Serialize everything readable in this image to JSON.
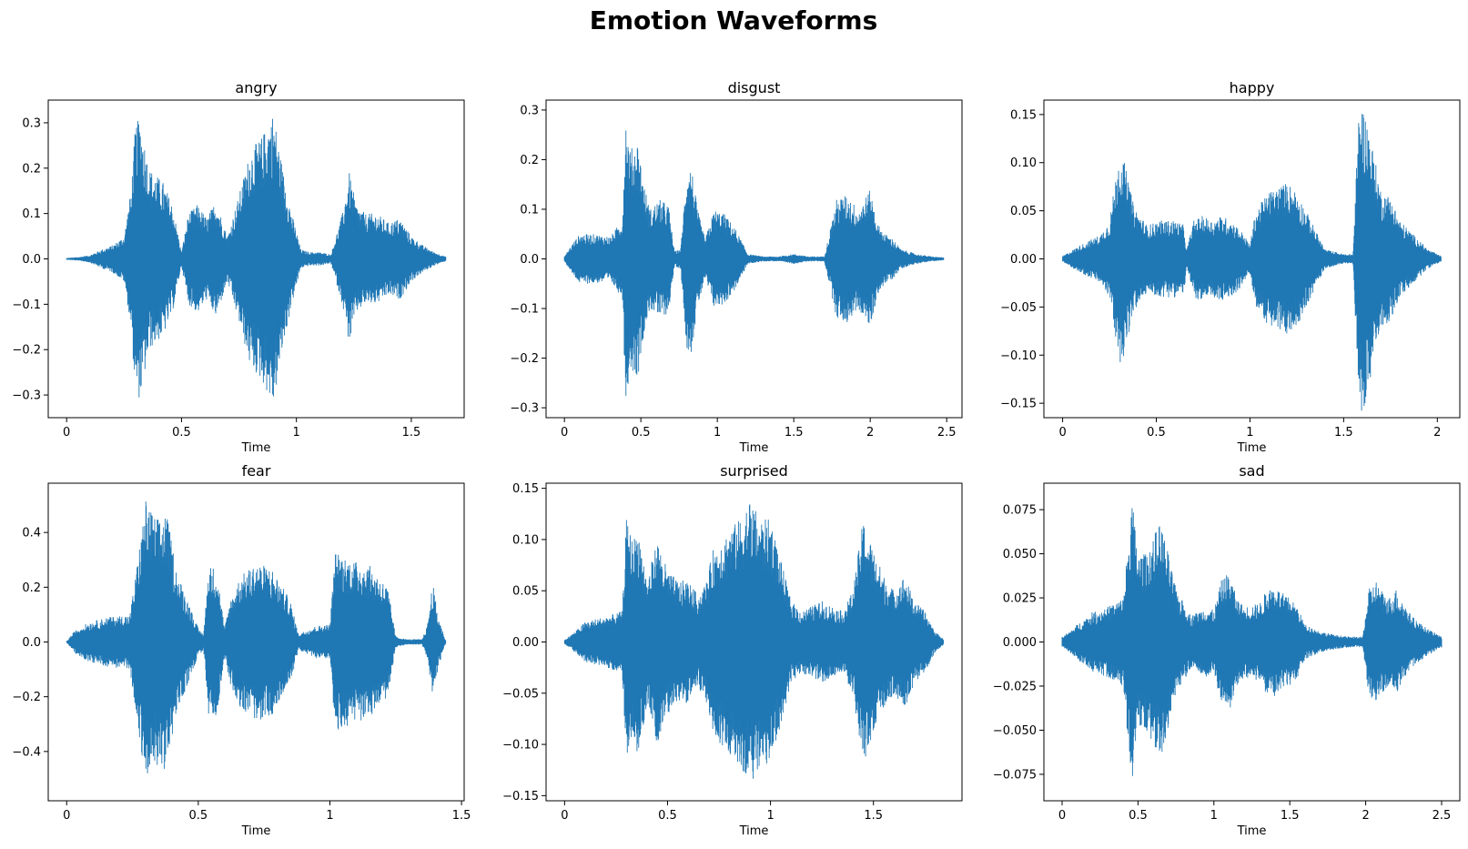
{
  "figure": {
    "title": "Emotion Waveforms"
  },
  "chart_data": [
    {
      "type": "area",
      "title": "angry",
      "xlabel": "Time",
      "ylabel": "",
      "duration": 1.65,
      "xlim": [
        -0.08,
        1.73
      ],
      "ylim": [
        -0.35,
        0.35
      ],
      "xticks": [
        0,
        0.5,
        1,
        1.5
      ],
      "xtick_labels": [
        "0",
        "0.5",
        "1",
        "1.5"
      ],
      "yticks": [
        0.3,
        0.2,
        0.1,
        0.0,
        -0.1,
        -0.2,
        -0.3
      ],
      "ytick_labels": [
        "0.3",
        "0.2",
        "0.1",
        "0.0",
        "−0.1",
        "−0.2",
        "−0.3"
      ],
      "color": "#1f77b4",
      "envelope": {
        "t": [
          0,
          0.05,
          0.1,
          0.15,
          0.2,
          0.25,
          0.28,
          0.3,
          0.32,
          0.36,
          0.42,
          0.46,
          0.5,
          0.53,
          0.57,
          0.61,
          0.65,
          0.7,
          0.75,
          0.8,
          0.85,
          0.9,
          0.94,
          0.98,
          1.02,
          1.06,
          1.1,
          1.15,
          1.2,
          1.23,
          1.26,
          1.3,
          1.35,
          1.4,
          1.45,
          1.5,
          1.55,
          1.6,
          1.65
        ],
        "amp": [
          0.002,
          0.004,
          0.008,
          0.02,
          0.03,
          0.05,
          0.15,
          0.3,
          0.31,
          0.2,
          0.17,
          0.12,
          0.015,
          0.1,
          0.12,
          0.09,
          0.13,
          0.05,
          0.14,
          0.24,
          0.27,
          0.325,
          0.2,
          0.1,
          0.02,
          0.015,
          0.015,
          0.01,
          0.1,
          0.19,
          0.12,
          0.1,
          0.1,
          0.08,
          0.09,
          0.05,
          0.03,
          0.015,
          0.005
        ]
      }
    },
    {
      "type": "area",
      "title": "disgust",
      "xlabel": "Time",
      "ylabel": "",
      "duration": 2.48,
      "xlim": [
        -0.12,
        2.6
      ],
      "ylim": [
        -0.32,
        0.32
      ],
      "xticks": [
        0,
        0.5,
        1,
        1.5,
        2,
        2.5
      ],
      "xtick_labels": [
        "0",
        "0.5",
        "1",
        "1.5",
        "2",
        "2.5"
      ],
      "yticks": [
        0.3,
        0.2,
        0.1,
        0.0,
        -0.1,
        -0.2,
        -0.3
      ],
      "ytick_labels": [
        "0.3",
        "0.2",
        "0.1",
        "0.0",
        "−0.1",
        "−0.2",
        "−0.3"
      ],
      "color": "#1f77b4",
      "envelope": {
        "t": [
          0,
          0.05,
          0.1,
          0.2,
          0.3,
          0.38,
          0.4,
          0.43,
          0.48,
          0.52,
          0.56,
          0.62,
          0.68,
          0.72,
          0.76,
          0.8,
          0.83,
          0.87,
          0.92,
          0.98,
          1.05,
          1.12,
          1.2,
          1.3,
          1.4,
          1.5,
          1.6,
          1.7,
          1.78,
          1.85,
          1.92,
          2.0,
          2.05,
          2.1,
          2.15,
          2.2,
          2.3,
          2.4,
          2.48
        ],
        "amp": [
          0.005,
          0.03,
          0.05,
          0.05,
          0.045,
          0.08,
          0.29,
          0.22,
          0.24,
          0.15,
          0.1,
          0.12,
          0.11,
          0.015,
          0.02,
          0.18,
          0.19,
          0.1,
          0.04,
          0.1,
          0.09,
          0.06,
          0.01,
          0.005,
          0.005,
          0.01,
          0.005,
          0.005,
          0.12,
          0.13,
          0.1,
          0.14,
          0.07,
          0.05,
          0.04,
          0.02,
          0.01,
          0.005,
          0.003
        ]
      }
    },
    {
      "type": "area",
      "title": "happy",
      "xlabel": "Time",
      "ylabel": "",
      "duration": 2.02,
      "xlim": [
        -0.1,
        2.12
      ],
      "ylim": [
        -0.165,
        0.165
      ],
      "xticks": [
        0,
        0.5,
        1,
        1.5,
        2
      ],
      "xtick_labels": [
        "0",
        "0.5",
        "1",
        "1.5",
        "2"
      ],
      "yticks": [
        0.15,
        0.1,
        0.05,
        0.0,
        -0.05,
        -0.1,
        -0.15
      ],
      "ytick_labels": [
        "0.15",
        "0.10",
        "0.05",
        "0.00",
        "−0.05",
        "−0.10",
        "−0.15"
      ],
      "color": "#1f77b4",
      "envelope": {
        "t": [
          0,
          0.1,
          0.2,
          0.25,
          0.28,
          0.3,
          0.33,
          0.38,
          0.45,
          0.52,
          0.6,
          0.65,
          0.66,
          0.7,
          0.75,
          0.8,
          0.85,
          0.9,
          0.95,
          1.0,
          1.03,
          1.1,
          1.15,
          1.2,
          1.25,
          1.3,
          1.35,
          1.4,
          1.5,
          1.55,
          1.58,
          1.6,
          1.63,
          1.7,
          1.75,
          1.8,
          1.9,
          1.95,
          2.0,
          2.02
        ],
        "amp": [
          0.003,
          0.015,
          0.025,
          0.04,
          0.08,
          0.11,
          0.1,
          0.055,
          0.035,
          0.04,
          0.04,
          0.035,
          0.008,
          0.04,
          0.045,
          0.04,
          0.045,
          0.04,
          0.03,
          0.015,
          0.05,
          0.07,
          0.075,
          0.08,
          0.07,
          0.05,
          0.03,
          0.01,
          0.005,
          0.005,
          0.15,
          0.16,
          0.14,
          0.07,
          0.065,
          0.04,
          0.02,
          0.01,
          0.005,
          0.003
        ]
      }
    },
    {
      "type": "area",
      "title": "fear",
      "xlabel": "Time",
      "ylabel": "",
      "duration": 1.44,
      "xlim": [
        -0.07,
        1.51
      ],
      "ylim": [
        -0.58,
        0.58
      ],
      "xticks": [
        0,
        0.5,
        1,
        1.5
      ],
      "xtick_labels": [
        "0",
        "0.5",
        "1",
        "1.5"
      ],
      "yticks": [
        0.4,
        0.2,
        0.0,
        -0.2,
        -0.4
      ],
      "ytick_labels": [
        "0.4",
        "0.2",
        "0.0",
        "−0.2",
        "−0.4"
      ],
      "color": "#1f77b4",
      "envelope": {
        "t": [
          0,
          0.03,
          0.08,
          0.15,
          0.24,
          0.27,
          0.3,
          0.34,
          0.38,
          0.42,
          0.45,
          0.5,
          0.52,
          0.54,
          0.57,
          0.6,
          0.62,
          0.66,
          0.72,
          0.78,
          0.85,
          0.88,
          0.95,
          1.0,
          1.02,
          1.08,
          1.15,
          1.22,
          1.25,
          1.29,
          1.32,
          1.35,
          1.37,
          1.39,
          1.41,
          1.44
        ],
        "amp": [
          0.003,
          0.04,
          0.07,
          0.09,
          0.1,
          0.3,
          0.52,
          0.45,
          0.47,
          0.25,
          0.18,
          0.05,
          0.03,
          0.28,
          0.27,
          0.05,
          0.15,
          0.24,
          0.29,
          0.27,
          0.15,
          0.03,
          0.06,
          0.065,
          0.33,
          0.3,
          0.28,
          0.2,
          0.02,
          0.01,
          0.01,
          0.01,
          0.06,
          0.22,
          0.1,
          0.005
        ]
      }
    },
    {
      "type": "area",
      "title": "surprised",
      "xlabel": "Time",
      "ylabel": "",
      "duration": 1.84,
      "xlim": [
        -0.09,
        1.93
      ],
      "ylim": [
        -0.155,
        0.155
      ],
      "xticks": [
        0,
        0.5,
        1,
        1.5
      ],
      "xtick_labels": [
        "0",
        "0.5",
        "1",
        "1.5"
      ],
      "yticks": [
        0.15,
        0.1,
        0.05,
        0.0,
        -0.05,
        -0.1,
        -0.15
      ],
      "ytick_labels": [
        "0.15",
        "0.10",
        "0.05",
        "0.00",
        "−0.05",
        "−0.10",
        "−0.15"
      ],
      "color": "#1f77b4",
      "envelope": {
        "t": [
          0,
          0.05,
          0.1,
          0.2,
          0.28,
          0.3,
          0.33,
          0.36,
          0.4,
          0.45,
          0.5,
          0.55,
          0.6,
          0.65,
          0.69,
          0.72,
          0.76,
          0.8,
          0.85,
          0.9,
          0.95,
          1.0,
          1.05,
          1.1,
          1.15,
          1.2,
          1.25,
          1.3,
          1.35,
          1.4,
          1.45,
          1.5,
          1.55,
          1.6,
          1.65,
          1.7,
          1.75,
          1.8,
          1.84
        ],
        "amp": [
          0.002,
          0.01,
          0.02,
          0.025,
          0.03,
          0.12,
          0.1,
          0.11,
          0.06,
          0.1,
          0.07,
          0.06,
          0.06,
          0.045,
          0.06,
          0.09,
          0.1,
          0.11,
          0.12,
          0.14,
          0.12,
          0.12,
          0.08,
          0.04,
          0.03,
          0.035,
          0.04,
          0.035,
          0.03,
          0.05,
          0.12,
          0.09,
          0.065,
          0.05,
          0.065,
          0.04,
          0.03,
          0.01,
          0.003
        ]
      }
    },
    {
      "type": "area",
      "title": "sad",
      "xlabel": "Time",
      "ylabel": "",
      "duration": 2.5,
      "xlim": [
        -0.12,
        2.62
      ],
      "ylim": [
        -0.09,
        0.09
      ],
      "xticks": [
        0,
        0.5,
        1,
        1.5,
        2,
        2.5
      ],
      "xtick_labels": [
        "0",
        "0.5",
        "1",
        "1.5",
        "2",
        "2.5"
      ],
      "yticks": [
        0.075,
        0.05,
        0.025,
        0.0,
        -0.025,
        -0.05,
        -0.075
      ],
      "ytick_labels": [
        "0.075",
        "0.050",
        "0.025",
        "0.000",
        "−0.025",
        "−0.050",
        "−0.075"
      ],
      "color": "#1f77b4",
      "envelope": {
        "t": [
          0,
          0.05,
          0.1,
          0.2,
          0.3,
          0.4,
          0.44,
          0.46,
          0.5,
          0.55,
          0.6,
          0.65,
          0.7,
          0.75,
          0.85,
          0.95,
          1.0,
          1.05,
          1.1,
          1.15,
          1.2,
          1.3,
          1.35,
          1.4,
          1.45,
          1.5,
          1.55,
          1.6,
          1.7,
          1.8,
          1.9,
          1.98,
          2.02,
          2.07,
          2.1,
          2.15,
          2.2,
          2.3,
          2.4,
          2.5
        ],
        "amp": [
          0.003,
          0.006,
          0.01,
          0.017,
          0.02,
          0.025,
          0.06,
          0.082,
          0.05,
          0.05,
          0.06,
          0.068,
          0.05,
          0.03,
          0.015,
          0.02,
          0.018,
          0.035,
          0.04,
          0.025,
          0.02,
          0.022,
          0.03,
          0.032,
          0.028,
          0.025,
          0.02,
          0.01,
          0.006,
          0.004,
          0.003,
          0.003,
          0.03,
          0.035,
          0.03,
          0.025,
          0.03,
          0.015,
          0.008,
          0.003
        ]
      }
    }
  ]
}
